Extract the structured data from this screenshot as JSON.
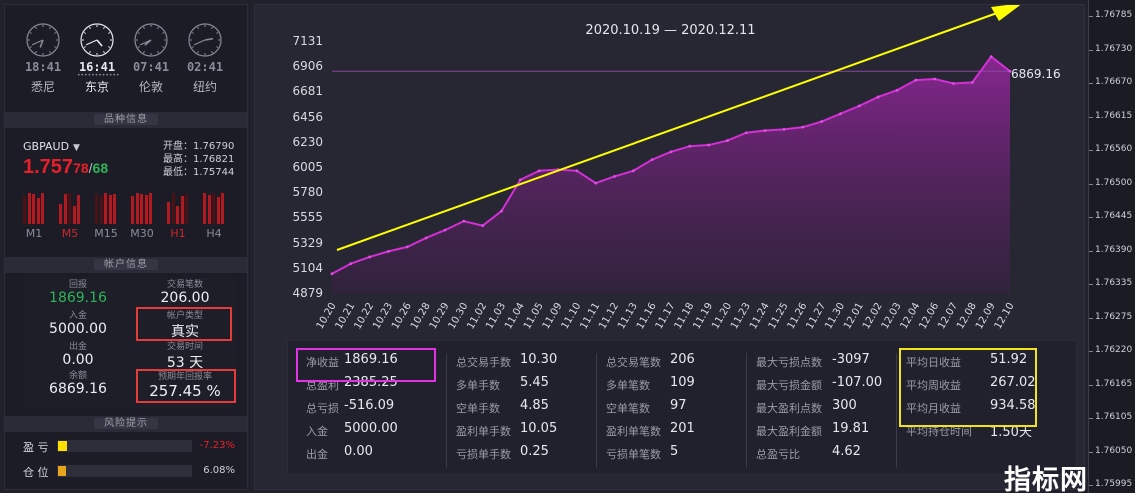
{
  "clocks": [
    {
      "time": "18:41",
      "city": "悉尼",
      "active": false
    },
    {
      "time": "16:41",
      "city": "东京",
      "active": true
    },
    {
      "time": "07:41",
      "city": "伦敦",
      "active": false
    },
    {
      "time": "02:41",
      "city": "纽约",
      "active": false
    }
  ],
  "sections": {
    "symbol_info": "品种信息",
    "account_info": "帐户信息",
    "risk_info": "风险提示"
  },
  "quote": {
    "symbol": "GBPAUD",
    "price_main": "1.757",
    "price_bid_pips": "78",
    "price_sep": "/",
    "price_ask_pips": "68",
    "open_label": "开盘：",
    "open": "1.76790",
    "high_label": "最高：",
    "high": "1.76821",
    "low_label": "最低：",
    "low": "1.75744"
  },
  "timeframes": [
    {
      "label": "M1",
      "active": false
    },
    {
      "label": "M5",
      "active": true
    },
    {
      "label": "M15",
      "active": false
    },
    {
      "label": "M30",
      "active": false
    },
    {
      "label": "H1",
      "active": true
    },
    {
      "label": "H4",
      "active": false
    }
  ],
  "account": {
    "return_label": "回报",
    "return_value": "1869.16",
    "trades_label": "交易笔数",
    "trades_value": "206.00",
    "deposit_label": "入金",
    "deposit_value": "5000.00",
    "acct_type_label": "帐户类型",
    "acct_type_value": "真实",
    "withdraw_label": "出金",
    "withdraw_value": "0.00",
    "duration_label": "交易时间",
    "duration_value": "53 天",
    "balance_label": "余额",
    "balance_value": "6869.16",
    "annual_label": "预期年回报率",
    "annual_value": "257.45 %"
  },
  "risk": {
    "pl_label": "盈  亏",
    "pl_value": "-7.23%",
    "pl_fill": 0.07,
    "pos_label": "仓  位",
    "pos_value": "6.08%",
    "pos_fill": 0.06
  },
  "chart_data": {
    "type": "area",
    "title": "2020.10.19 — 2020.12.11",
    "x": [
      "10.20",
      "10.21",
      "10.22",
      "10.23",
      "10.26",
      "10.28",
      "10.29",
      "10.30",
      "11.02",
      "11.03",
      "11.04",
      "11.05",
      "11.09",
      "11.10",
      "11.11",
      "11.12",
      "11.13",
      "11.16",
      "11.17",
      "11.18",
      "11.19",
      "11.20",
      "11.23",
      "11.24",
      "11.25",
      "11.26",
      "11.27",
      "11.30",
      "12.01",
      "12.02",
      "12.03",
      "12.04",
      "12.06",
      "12.07",
      "12.08",
      "12.09",
      "12.10"
    ],
    "values": [
      5060,
      5150,
      5210,
      5260,
      5300,
      5380,
      5450,
      5530,
      5490,
      5620,
      5900,
      5980,
      5990,
      5980,
      5870,
      5930,
      5980,
      6080,
      6150,
      6200,
      6210,
      6250,
      6320,
      6340,
      6350,
      6370,
      6420,
      6490,
      6560,
      6640,
      6700,
      6790,
      6800,
      6760,
      6770,
      7000,
      6869.16
    ],
    "yticks": [
      4879,
      5104,
      5329,
      5555,
      5780,
      6005,
      6230,
      6456,
      6681,
      6906,
      7131
    ],
    "ylim": [
      4879,
      7131
    ],
    "end_label": "6869.16",
    "reference_line": 6869.16
  },
  "stats": {
    "col1": [
      {
        "k": "净收益",
        "v": "1869.16"
      },
      {
        "k": "总盈利",
        "v": "2385.25"
      },
      {
        "k": "总亏损",
        "v": "-516.09"
      },
      {
        "k": "入金",
        "v": "5000.00"
      },
      {
        "k": "出金",
        "v": "0.00"
      }
    ],
    "col2": [
      {
        "k": "总交易手数",
        "v": "10.30"
      },
      {
        "k": "多单手数",
        "v": "5.45"
      },
      {
        "k": "空单手数",
        "v": "4.85"
      },
      {
        "k": "盈利单手数",
        "v": "10.05"
      },
      {
        "k": "亏损单手数",
        "v": "0.25"
      }
    ],
    "col3": [
      {
        "k": "总交易笔数",
        "v": "206"
      },
      {
        "k": "多单笔数",
        "v": "109"
      },
      {
        "k": "空单笔数",
        "v": "97"
      },
      {
        "k": "盈利单笔数",
        "v": "201"
      },
      {
        "k": "亏损单笔数",
        "v": "5"
      }
    ],
    "col4": [
      {
        "k": "最大亏损点数",
        "v": "-3097"
      },
      {
        "k": "最大亏损金额",
        "v": "-107.00"
      },
      {
        "k": "最大盈利点数",
        "v": "300"
      },
      {
        "k": "最大盈利金额",
        "v": "19.81"
      },
      {
        "k": "总盈亏比",
        "v": "4.62"
      }
    ],
    "col5": [
      {
        "k": "平均日收益",
        "v": "51.92"
      },
      {
        "k": "平均周收益",
        "v": "267.02"
      },
      {
        "k": "平均月收益",
        "v": "934.58"
      },
      {
        "k": "平均持仓时间",
        "v": "1.50天"
      }
    ]
  },
  "price_axis": [
    "1.76785",
    "1.76730",
    "1.76670",
    "1.76615",
    "1.76560",
    "1.76500",
    "1.76445",
    "1.76390",
    "1.76335",
    "1.76275",
    "1.76220",
    "1.76165",
    "1.76105",
    "1.76050",
    "1.75995"
  ],
  "watermark": "指标网",
  "colors": {
    "area": "#7a1d82",
    "line": "#d32fd4",
    "arrow": "#ffff00",
    "red_box": "#e63b3b",
    "magenta_box": "#e132e6",
    "yellow_box": "#f1e21a"
  }
}
